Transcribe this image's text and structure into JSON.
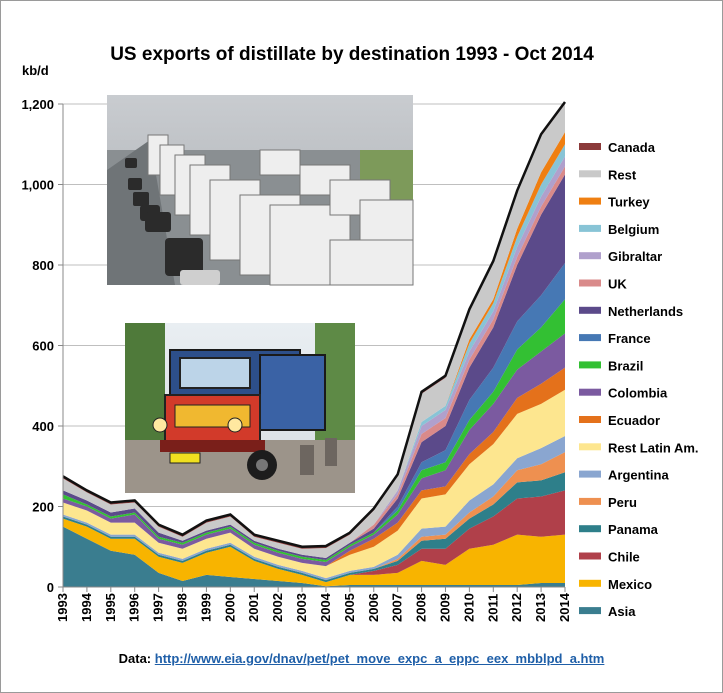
{
  "chart_data": {
    "type": "area",
    "stacked": true,
    "title": "US exports of distillate by destination  1993 - Oct 2014",
    "ylabel": "kb/d",
    "ylim": [
      0,
      1200
    ],
    "yticks": [
      "0",
      "200",
      "400",
      "600",
      "800",
      "1,000",
      "1,200"
    ],
    "ytick_values": [
      0,
      200,
      400,
      600,
      800,
      1000,
      1200
    ],
    "x": [
      "1993",
      "1994",
      "1995",
      "1996",
      "1997",
      "1998",
      "1999",
      "2000",
      "2001",
      "2002",
      "2003",
      "2004",
      "2005",
      "2006",
      "2007",
      "2008",
      "2009",
      "2010",
      "2011",
      "2012",
      "2013",
      "2014"
    ],
    "grid": "horizontal",
    "legend_placement": "right",
    "series": [
      {
        "name": "Asia",
        "color": "#3a7d8f",
        "values": [
          150,
          120,
          90,
          80,
          35,
          15,
          30,
          25,
          20,
          15,
          10,
          2,
          5,
          5,
          5,
          5,
          5,
          5,
          5,
          5,
          10,
          10
        ]
      },
      {
        "name": "Mexico",
        "color": "#f8b400",
        "values": [
          20,
          30,
          30,
          40,
          40,
          45,
          55,
          75,
          45,
          30,
          20,
          10,
          25,
          25,
          30,
          60,
          50,
          90,
          100,
          125,
          115,
          120
        ]
      },
      {
        "name": "Chile",
        "color": "#b0404a",
        "values": [
          0,
          0,
          0,
          0,
          0,
          0,
          0,
          0,
          0,
          0,
          0,
          0,
          0,
          10,
          20,
          30,
          40,
          50,
          70,
          90,
          100,
          110
        ]
      },
      {
        "name": "Panama",
        "color": "#2e7f8a",
        "values": [
          5,
          5,
          5,
          5,
          5,
          5,
          5,
          5,
          5,
          5,
          5,
          5,
          5,
          5,
          10,
          20,
          25,
          25,
          30,
          40,
          40,
          45
        ]
      },
      {
        "name": "Peru",
        "color": "#ee9050",
        "values": [
          0,
          0,
          0,
          0,
          0,
          0,
          0,
          0,
          0,
          0,
          0,
          0,
          0,
          0,
          5,
          10,
          10,
          15,
          20,
          30,
          40,
          50
        ]
      },
      {
        "name": "Argentina",
        "color": "#8aa6d0",
        "values": [
          5,
          5,
          5,
          5,
          5,
          5,
          5,
          5,
          5,
          5,
          5,
          5,
          5,
          5,
          10,
          20,
          20,
          30,
          30,
          30,
          40,
          40
        ]
      },
      {
        "name": "Rest Latin Am.",
        "color": "#fde68f",
        "values": [
          30,
          30,
          30,
          30,
          25,
          25,
          25,
          25,
          20,
          20,
          20,
          30,
          40,
          50,
          60,
          75,
          80,
          90,
          100,
          110,
          110,
          115
        ]
      },
      {
        "name": "Ecuador",
        "color": "#e4711b",
        "values": [
          0,
          0,
          0,
          0,
          0,
          0,
          0,
          0,
          0,
          0,
          0,
          0,
          10,
          20,
          20,
          20,
          20,
          25,
          30,
          40,
          50,
          55
        ]
      },
      {
        "name": "Colombia",
        "color": "#7b5aa0",
        "values": [
          10,
          10,
          10,
          20,
          10,
          10,
          10,
          10,
          10,
          10,
          10,
          10,
          10,
          10,
          20,
          30,
          40,
          60,
          70,
          70,
          80,
          85
        ]
      },
      {
        "name": "Brazil",
        "color": "#33c033",
        "values": [
          10,
          5,
          5,
          5,
          5,
          5,
          5,
          5,
          5,
          5,
          5,
          5,
          5,
          5,
          10,
          20,
          20,
          25,
          30,
          50,
          60,
          85
        ]
      },
      {
        "name": "France",
        "color": "#4678b4",
        "values": [
          0,
          0,
          0,
          0,
          0,
          0,
          0,
          0,
          0,
          0,
          0,
          0,
          0,
          0,
          10,
          20,
          30,
          50,
          60,
          70,
          80,
          90
        ]
      },
      {
        "name": "Netherlands",
        "color": "#5b4a8a",
        "values": [
          10,
          10,
          10,
          10,
          10,
          5,
          5,
          5,
          5,
          5,
          5,
          5,
          5,
          10,
          20,
          50,
          60,
          80,
          100,
          140,
          200,
          220
        ]
      },
      {
        "name": "UK",
        "color": "#d98a8a",
        "values": [
          0,
          0,
          0,
          0,
          0,
          0,
          0,
          0,
          0,
          0,
          0,
          0,
          0,
          10,
          10,
          20,
          20,
          20,
          20,
          20,
          20,
          20
        ]
      },
      {
        "name": "Gibraltar",
        "color": "#b0a0cc",
        "values": [
          0,
          0,
          0,
          0,
          0,
          0,
          0,
          0,
          0,
          0,
          0,
          0,
          0,
          0,
          10,
          20,
          20,
          20,
          20,
          25,
          25,
          25
        ]
      },
      {
        "name": "Belgium",
        "color": "#88c4d6",
        "values": [
          0,
          0,
          0,
          0,
          0,
          0,
          0,
          0,
          0,
          0,
          0,
          0,
          0,
          0,
          0,
          10,
          10,
          20,
          20,
          25,
          30,
          30
        ]
      },
      {
        "name": "Turkey",
        "color": "#ef7f12",
        "values": [
          0,
          0,
          0,
          0,
          0,
          0,
          0,
          0,
          0,
          0,
          0,
          0,
          0,
          0,
          0,
          0,
          0,
          10,
          10,
          20,
          30,
          30
        ]
      },
      {
        "name": "Rest",
        "color": "#c9c9c9",
        "values": [
          30,
          20,
          20,
          15,
          15,
          10,
          20,
          20,
          10,
          15,
          15,
          25,
          20,
          35,
          35,
          70,
          70,
          70,
          90,
          90,
          90,
          70
        ]
      },
      {
        "name": "Canada",
        "color": "#8b3a3a",
        "values": [
          5,
          5,
          5,
          5,
          5,
          5,
          5,
          5,
          5,
          5,
          5,
          5,
          5,
          5,
          5,
          5,
          5,
          5,
          5,
          5,
          5,
          5
        ]
      }
    ]
  },
  "images": [
    {
      "name": "truck-traffic-photo",
      "description_icon": "truck-queue-photo"
    },
    {
      "name": "painted-bus-photo",
      "description_icon": "chiva-bus-photo"
    }
  ],
  "source": {
    "label": "Data:",
    "url_text": "http://www.eia.gov/dnav/pet/pet_move_expc_a_eppc_eex_mbblpd_a.htm"
  }
}
